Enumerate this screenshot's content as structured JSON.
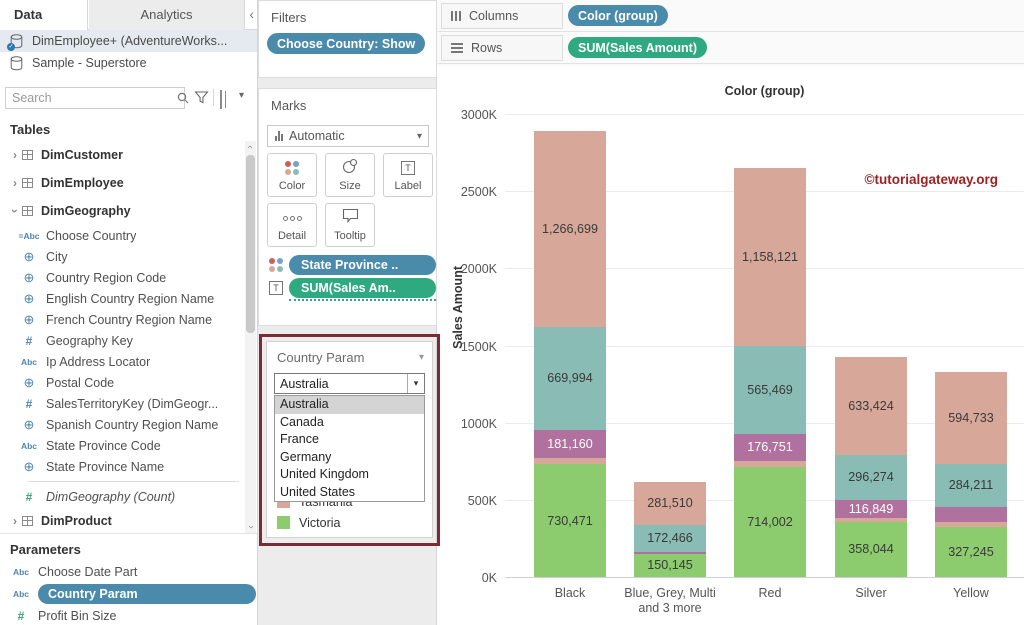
{
  "left_panel": {
    "tabs": {
      "data": "Data",
      "analytics": "Analytics"
    },
    "datasources": [
      {
        "name": "DimEmployee+ (AdventureWorks...",
        "selected": true
      },
      {
        "name": "Sample - Superstore",
        "selected": false
      }
    ],
    "search": {
      "placeholder": "Search"
    },
    "tables_header": "Tables",
    "fields": [
      {
        "icon": "table-icon",
        "expand": "collapsed",
        "label": "DimCustomer",
        "table": true
      },
      {
        "icon": "table-icon",
        "expand": "collapsed",
        "label": "DimEmployee",
        "table": true
      },
      {
        "icon": "table-icon",
        "expand": "expanded",
        "label": "DimGeography",
        "table": true
      },
      {
        "icon": "calculated-abc-icon",
        "label": "Choose Country"
      },
      {
        "icon": "globe-icon",
        "label": "City"
      },
      {
        "icon": "globe-icon",
        "label": "Country Region Code"
      },
      {
        "icon": "globe-icon",
        "label": "English Country Region Name"
      },
      {
        "icon": "globe-icon",
        "label": "French Country Region Name"
      },
      {
        "icon": "number-icon-blue",
        "label": "Geography Key"
      },
      {
        "icon": "abc-icon",
        "label": "Ip Address Locator"
      },
      {
        "icon": "globe-icon",
        "label": "Postal Code"
      },
      {
        "icon": "number-icon-blue",
        "label": "SalesTerritoryKey (DimGeogr..."
      },
      {
        "icon": "globe-icon",
        "label": "Spanish Country Region Name"
      },
      {
        "icon": "abc-icon",
        "label": "State Province Code"
      },
      {
        "icon": "globe-icon",
        "label": "State Province Name"
      },
      {
        "divider": true
      },
      {
        "icon": "number-icon-green",
        "label": "DimGeography (Count)",
        "italic": true
      },
      {
        "icon": "table-icon",
        "expand": "collapsed",
        "label": "DimProduct",
        "table": true
      }
    ],
    "parameters_header": "Parameters",
    "parameters": [
      {
        "icon": "abc-icon",
        "label": "Choose Date Part"
      },
      {
        "icon": "abc-icon",
        "label": "Country Param",
        "pill": true
      },
      {
        "icon": "number-icon-green",
        "label": "Profit Bin Size"
      }
    ]
  },
  "mid_panel": {
    "filters": {
      "title": "Filters",
      "pill": "Choose Country: Show"
    },
    "marks": {
      "title": "Marks",
      "mark_type": "Automatic",
      "buttons": [
        {
          "label": "Color",
          "icon": "color-dots-icon"
        },
        {
          "label": "Size",
          "icon": "size-circles-icon"
        },
        {
          "label": "Label",
          "icon": "text-label-icon"
        },
        {
          "label": "Detail",
          "icon": "detail-dots-icon"
        },
        {
          "label": "Tooltip",
          "icon": "tooltip-bubble-icon"
        }
      ],
      "pills": [
        {
          "label": "State Province ..",
          "color": "blue",
          "icon": "color-dots-icon"
        },
        {
          "label": "SUM(Sales Am..",
          "color": "green",
          "icon": "text-label-icon",
          "dotted_underline": true
        }
      ]
    },
    "param_control": {
      "title": "Country Param",
      "selected": "Australia",
      "options": [
        "Australia",
        "Canada",
        "France",
        "Germany",
        "United Kingdom",
        "United States"
      ],
      "legend_items": [
        {
          "label": "Tasmania",
          "color": "#d7a89a"
        },
        {
          "label": "Victoria",
          "color": "#8ccb6e"
        }
      ]
    }
  },
  "shelves": {
    "columns_label": "Columns",
    "columns_pill": "Color (group)",
    "rows_label": "Rows",
    "rows_pill": "SUM(Sales Amount)"
  },
  "watermark": "©tutorialgateway.org",
  "colors": {
    "pill_blue": "#4a8bac",
    "pill_green": "#2fa97f",
    "highlight_border_red": "#7c2a33",
    "watermark_red": "#9e2121"
  },
  "chart_data": {
    "type": "bar",
    "stacked": true,
    "title": "Color (group)",
    "xlabel": "",
    "ylabel": "Sales Amount",
    "ylim": [
      0,
      3000000
    ],
    "ytick_labels": [
      "0K",
      "500K",
      "1000K",
      "1500K",
      "2000K",
      "2500K",
      "3000K"
    ],
    "grid": true,
    "legend_position": "none",
    "categories": [
      "Black",
      "Blue, Grey, Multi and 3 more",
      "Red",
      "Silver",
      "Yellow"
    ],
    "xtick_lines": [
      [
        "Black"
      ],
      [
        "Blue, Grey, Multi",
        "and 3 more"
      ],
      [
        "Red"
      ],
      [
        "Silver"
      ],
      [
        "Yellow"
      ]
    ],
    "series_colors": {
      "green": "#8ccb6e",
      "tan": "#d7a89a",
      "purple": "#b0719f",
      "teal": "#88bcb4"
    },
    "bars": [
      {
        "category": "Black",
        "segments": [
          {
            "color": "green",
            "value": 730471,
            "label": "730,471"
          },
          {
            "color": "tan",
            "value": 40000,
            "label": ""
          },
          {
            "color": "purple",
            "value": 181160,
            "label": "181,160"
          },
          {
            "color": "teal",
            "value": 669994,
            "label": "669,994"
          },
          {
            "color": "tan",
            "value": 1266699,
            "label": "1,266,699"
          }
        ]
      },
      {
        "category": "Blue, Grey, Multi and 3 more",
        "segments": [
          {
            "color": "green",
            "value": 150145,
            "label": "150,145"
          },
          {
            "color": "purple",
            "value": 14000,
            "label": ""
          },
          {
            "color": "teal",
            "value": 172466,
            "label": "172,466"
          },
          {
            "color": "tan",
            "value": 281510,
            "label": "281,510"
          }
        ]
      },
      {
        "category": "Red",
        "segments": [
          {
            "color": "green",
            "value": 714002,
            "label": "714,002"
          },
          {
            "color": "tan",
            "value": 38000,
            "label": ""
          },
          {
            "color": "purple",
            "value": 176751,
            "label": "176,751"
          },
          {
            "color": "teal",
            "value": 565469,
            "label": "565,469"
          },
          {
            "color": "tan",
            "value": 1158121,
            "label": "1,158,121"
          }
        ]
      },
      {
        "category": "Silver",
        "segments": [
          {
            "color": "green",
            "value": 358044,
            "label": "358,044"
          },
          {
            "color": "tan",
            "value": 22000,
            "label": ""
          },
          {
            "color": "purple",
            "value": 116849,
            "label": "116,849"
          },
          {
            "color": "teal",
            "value": 296274,
            "label": "296,274"
          },
          {
            "color": "tan",
            "value": 633424,
            "label": "633,424"
          }
        ]
      },
      {
        "category": "Yellow",
        "segments": [
          {
            "color": "green",
            "value": 327245,
            "label": "327,245"
          },
          {
            "color": "tan",
            "value": 32000,
            "label": ""
          },
          {
            "color": "purple",
            "value": 92000,
            "label": ""
          },
          {
            "color": "teal",
            "value": 284211,
            "label": "284,211"
          },
          {
            "color": "tan",
            "value": 594733,
            "label": "594,733"
          }
        ]
      }
    ]
  }
}
